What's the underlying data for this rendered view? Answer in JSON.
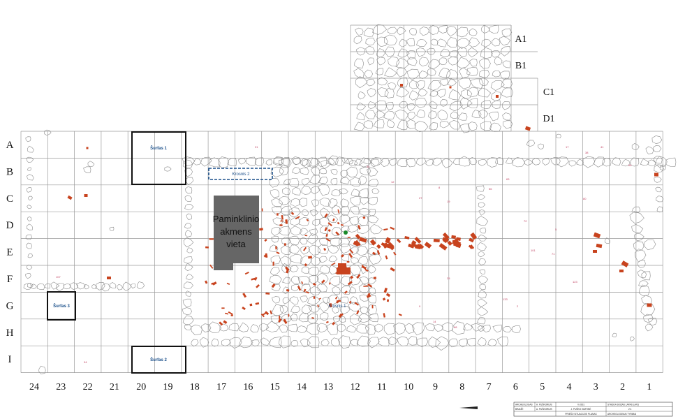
{
  "row_labels": [
    "A",
    "B",
    "C",
    "D",
    "E",
    "F",
    "G",
    "H",
    "I"
  ],
  "column_labels": [
    "24",
    "23",
    "22",
    "21",
    "20",
    "19",
    "18",
    "17",
    "16",
    "15",
    "14",
    "13",
    "12",
    "11",
    "10",
    "9",
    "8",
    "7",
    "6",
    "5",
    "4",
    "3",
    "2",
    "1"
  ],
  "extension_row_labels": [
    "A1",
    "B1",
    "C1",
    "D1"
  ],
  "trenches": [
    {
      "label": "Šurfas 1",
      "name": "surfas-1"
    },
    {
      "label": "Šurfas 2",
      "name": "surfas-2"
    },
    {
      "label": "Šurfas 3",
      "name": "surfas-3"
    },
    {
      "label": "Krosnis 2",
      "name": "krosnis-2"
    },
    {
      "label": "Krosnis 1",
      "name": "krosnis-1"
    }
  ],
  "monument": {
    "label_lines": [
      "Paminklinio",
      "akmens",
      "vieta"
    ]
  },
  "title_block": {
    "rows": [
      [
        "ARCHEOLOGAS",
        "A. PUŠKORIUS",
        "V-2001",
        "STADIJA  SKIZAS  LAPAS  LAPŲ"
      ],
      [
        "BRAIŽĖ",
        "A. PUŠKORIUS",
        "J. PUŠKO GIMTINĖ",
        "2      4"
      ],
      [
        "",
        "",
        "PRIEŠO SITUACIJOS PLANAS",
        "ARCHEOLOGINIAI TYRIMAI"
      ]
    ]
  },
  "colors": {
    "grid": "#9a9a9a",
    "stone": "#8c8c8c",
    "find": "#c8431e",
    "monument": "#666666",
    "trench": "#111111",
    "trench_label": "#1a4f8a",
    "dashed": "#1a4f8a"
  }
}
